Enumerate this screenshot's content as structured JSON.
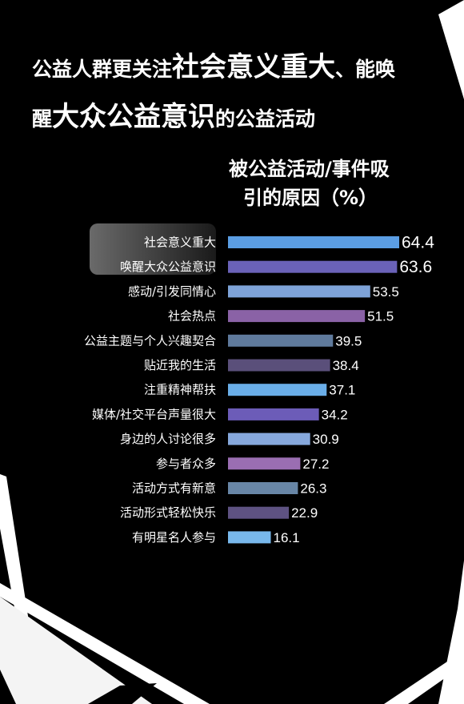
{
  "title": {
    "seg1": "公益人群更关注",
    "seg2": "社会意义重大",
    "seg3": "、能唤",
    "seg4": "醒",
    "seg5": "大众公益意识",
    "seg6": "的公益活动"
  },
  "subtitle": {
    "line1": "被公益活动/事件吸",
    "line2": "引的原因（%）"
  },
  "chart_data": {
    "type": "bar",
    "orientation": "horizontal",
    "categories": [
      "社会意义重大",
      "唤醒大众公益意识",
      "感动/引发同情心",
      "社会热点",
      "公益主题与个人兴趣契合",
      "贴近我的生活",
      "注重精神帮扶",
      "媒体/社交平台声量很大",
      "身边的人讨论很多",
      "参与者众多",
      "活动方式有新意",
      "活动形式轻松快乐",
      "有明星名人参与"
    ],
    "values": [
      64.4,
      63.6,
      53.5,
      51.5,
      39.5,
      38.4,
      37.1,
      34.2,
      30.9,
      27.2,
      26.3,
      22.9,
      16.1
    ],
    "value_labels": [
      "64.4",
      "63.6",
      "53.5",
      "51.5",
      "39.5",
      "38.4",
      "37.1",
      "34.2",
      "30.9",
      "27.2",
      "26.3",
      "22.9",
      "16.1"
    ],
    "bar_colors": [
      "#5b9ee4",
      "#6a62b8",
      "#7ea3d8",
      "#8a62a6",
      "#5f7a9c",
      "#5a4f7a",
      "#6aaee8",
      "#6c5cb8",
      "#86a8dc",
      "#9a6eb2",
      "#6886a6",
      "#5e5282",
      "#78b8ec"
    ],
    "xlim": [
      0,
      64.4
    ],
    "grid": false,
    "legend": "none",
    "title": "被公益活动/事件吸引的原因（%）"
  }
}
